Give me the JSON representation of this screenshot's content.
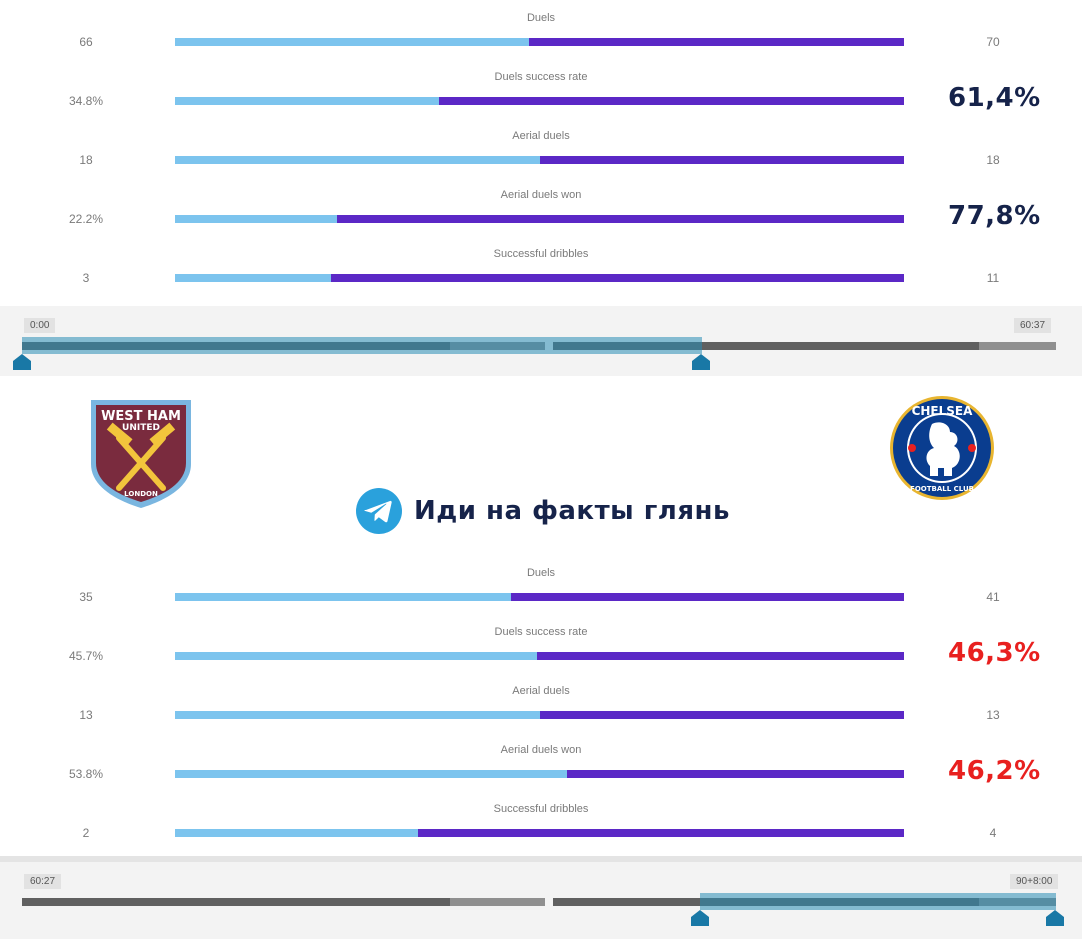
{
  "colors": {
    "home_bar": "#7cc4ee",
    "away_bar": "#5b28c6",
    "highlight_dark": "#16234a",
    "highlight_red": "#e8201f",
    "selection": "#2a8cb4"
  },
  "top_stats": [
    {
      "label": "Duels",
      "left": "66",
      "right": "70",
      "home_share": 0.485,
      "highlight": ""
    },
    {
      "label": "Duels success rate",
      "left": "34.8%",
      "right": "61,4%",
      "home_share": 0.362,
      "highlight": "dark"
    },
    {
      "label": "Aerial duels",
      "left": "18",
      "right": "18",
      "home_share": 0.5,
      "highlight": ""
    },
    {
      "label": "Aerial duels won",
      "left": "22.2%",
      "right": "77,8%",
      "home_share": 0.222,
      "highlight": "dark"
    },
    {
      "label": "Successful dribbles",
      "left": "3",
      "right": "11",
      "home_share": 0.214,
      "highlight": ""
    }
  ],
  "top_timeline": {
    "start": "0:00",
    "end": "60:37"
  },
  "teams": {
    "home": {
      "name": "West Ham United",
      "logo_top": "WEST HAM",
      "logo_mid": "UNITED",
      "logo_bottom": "LONDON",
      "logo_icon": "crossed-hammers-icon"
    },
    "away": {
      "name": "Chelsea",
      "logo_top": "CHELSEA",
      "logo_bottom": "FOOTBALL CLUB",
      "logo_icon": "lion-crest-icon"
    }
  },
  "promo": {
    "icon": "telegram-icon",
    "text": "Иди на факты глянь"
  },
  "bottom_stats": [
    {
      "label": "Duels",
      "left": "35",
      "right": "41",
      "home_share": 0.461,
      "highlight": ""
    },
    {
      "label": "Duels success rate",
      "left": "45.7%",
      "right": "46,3%",
      "home_share": 0.497,
      "highlight": "red"
    },
    {
      "label": "Aerial duels",
      "left": "13",
      "right": "13",
      "home_share": 0.5,
      "highlight": ""
    },
    {
      "label": "Aerial duels won",
      "left": "53.8%",
      "right": "46,2%",
      "home_share": 0.538,
      "highlight": "red"
    },
    {
      "label": "Successful dribbles",
      "left": "2",
      "right": "4",
      "home_share": 0.333,
      "highlight": ""
    }
  ],
  "bottom_timeline": {
    "start": "60:27",
    "end": "90+8:00"
  }
}
